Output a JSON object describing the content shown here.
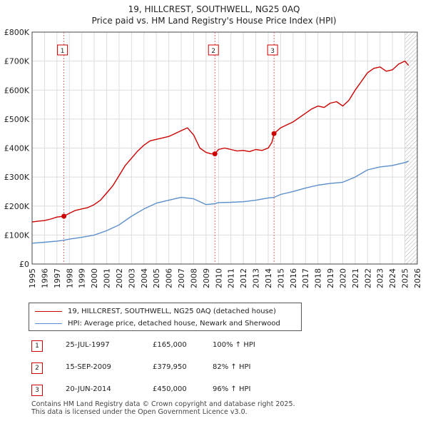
{
  "title_line1": "19, HILLCREST, SOUTHWELL, NG25 0AQ",
  "title_line2": "Price paid vs. HM Land Registry's House Price Index (HPI)",
  "colors": {
    "property": "#cc0000",
    "hpi": "#5b8fcc",
    "grid": "#dddddd",
    "vline": "#e06666",
    "hatch": "#aaaaaa"
  },
  "legend": {
    "property_label": "19, HILLCREST, SOUTHWELL, NG25 0AQ (detached house)",
    "hpi_label": "HPI: Average price, detached house, Newark and Sherwood"
  },
  "transactions": [
    {
      "num": "1",
      "date": "25-JUL-1997",
      "price": "£165,000",
      "hpi": "100% ↑ HPI"
    },
    {
      "num": "2",
      "date": "15-SEP-2009",
      "price": "£379,950",
      "hpi": "82% ↑ HPI"
    },
    {
      "num": "3",
      "date": "20-JUN-2014",
      "price": "£450,000",
      "hpi": "96% ↑ HPI"
    }
  ],
  "footer": {
    "line1": "Contains HM Land Registry data © Crown copyright and database right 2025.",
    "line2": "This data is licensed under the Open Government Licence v3.0."
  },
  "chart_data": {
    "type": "line",
    "xlim": [
      1995,
      2026
    ],
    "ylim": [
      0,
      800000
    ],
    "yticks": [
      0,
      100000,
      200000,
      300000,
      400000,
      500000,
      600000,
      700000,
      800000
    ],
    "ytick_labels": [
      "£0",
      "£100K",
      "£200K",
      "£300K",
      "£400K",
      "£500K",
      "£600K",
      "£700K",
      "£800K"
    ],
    "xticks": [
      1995,
      1996,
      1997,
      1998,
      1999,
      2000,
      2001,
      2002,
      2003,
      2004,
      2005,
      2006,
      2007,
      2008,
      2009,
      2010,
      2011,
      2012,
      2013,
      2014,
      2015,
      2016,
      2017,
      2018,
      2019,
      2020,
      2021,
      2022,
      2023,
      2024,
      2025,
      2026
    ],
    "hatch_from": 2025.0,
    "sales": [
      {
        "label": "1",
        "x": 1997.56,
        "y": 165000
      },
      {
        "label": "2",
        "x": 2009.71,
        "y": 379950
      },
      {
        "label": "3",
        "x": 2014.47,
        "y": 450000
      }
    ],
    "series": [
      {
        "name": "19, HILLCREST, SOUTHWELL, NG25 0AQ (detached house)",
        "x": [
          1995.0,
          1995.5,
          1996.0,
          1996.5,
          1997.0,
          1997.56,
          1998.0,
          1998.5,
          1999.0,
          1999.5,
          2000.0,
          2000.5,
          2001.0,
          2001.5,
          2002.0,
          2002.5,
          2003.0,
          2003.5,
          2004.0,
          2004.5,
          2005.0,
          2005.5,
          2006.0,
          2006.5,
          2007.0,
          2007.5,
          2008.0,
          2008.5,
          2009.0,
          2009.4,
          2009.71,
          2010.0,
          2010.5,
          2011.0,
          2011.5,
          2012.0,
          2012.5,
          2013.0,
          2013.5,
          2014.0,
          2014.3,
          2014.47,
          2015.0,
          2015.5,
          2016.0,
          2016.5,
          2017.0,
          2017.5,
          2018.0,
          2018.5,
          2019.0,
          2019.5,
          2020.0,
          2020.5,
          2021.0,
          2021.5,
          2022.0,
          2022.5,
          2023.0,
          2023.5,
          2024.0,
          2024.5,
          2025.0,
          2025.3
        ],
        "values": [
          145000,
          148000,
          150000,
          155000,
          162000,
          165000,
          175000,
          185000,
          190000,
          195000,
          205000,
          220000,
          245000,
          270000,
          305000,
          340000,
          365000,
          390000,
          410000,
          425000,
          430000,
          435000,
          440000,
          450000,
          460000,
          470000,
          445000,
          400000,
          385000,
          380000,
          379950,
          395000,
          400000,
          395000,
          390000,
          392000,
          388000,
          395000,
          392000,
          400000,
          420000,
          450000,
          470000,
          480000,
          490000,
          505000,
          520000,
          535000,
          545000,
          540000,
          555000,
          560000,
          545000,
          565000,
          600000,
          630000,
          660000,
          675000,
          680000,
          665000,
          670000,
          690000,
          700000,
          685000
        ]
      },
      {
        "name": "HPI: Average price, detached house, Newark and Sherwood",
        "x": [
          1995.0,
          1996.0,
          1997.0,
          1997.56,
          1998.0,
          1999.0,
          2000.0,
          2001.0,
          2002.0,
          2003.0,
          2004.0,
          2005.0,
          2006.0,
          2007.0,
          2008.0,
          2009.0,
          2009.71,
          2010.0,
          2011.0,
          2012.0,
          2013.0,
          2014.0,
          2014.47,
          2015.0,
          2016.0,
          2017.0,
          2018.0,
          2019.0,
          2020.0,
          2021.0,
          2022.0,
          2023.0,
          2024.0,
          2025.0,
          2025.3
        ],
        "values": [
          72000,
          75000,
          79000,
          82000,
          86000,
          92000,
          100000,
          115000,
          135000,
          165000,
          190000,
          210000,
          220000,
          230000,
          225000,
          205000,
          208000,
          212000,
          213000,
          215000,
          220000,
          228000,
          230000,
          240000,
          250000,
          262000,
          272000,
          278000,
          282000,
          300000,
          325000,
          335000,
          340000,
          350000,
          355000
        ]
      }
    ]
  }
}
